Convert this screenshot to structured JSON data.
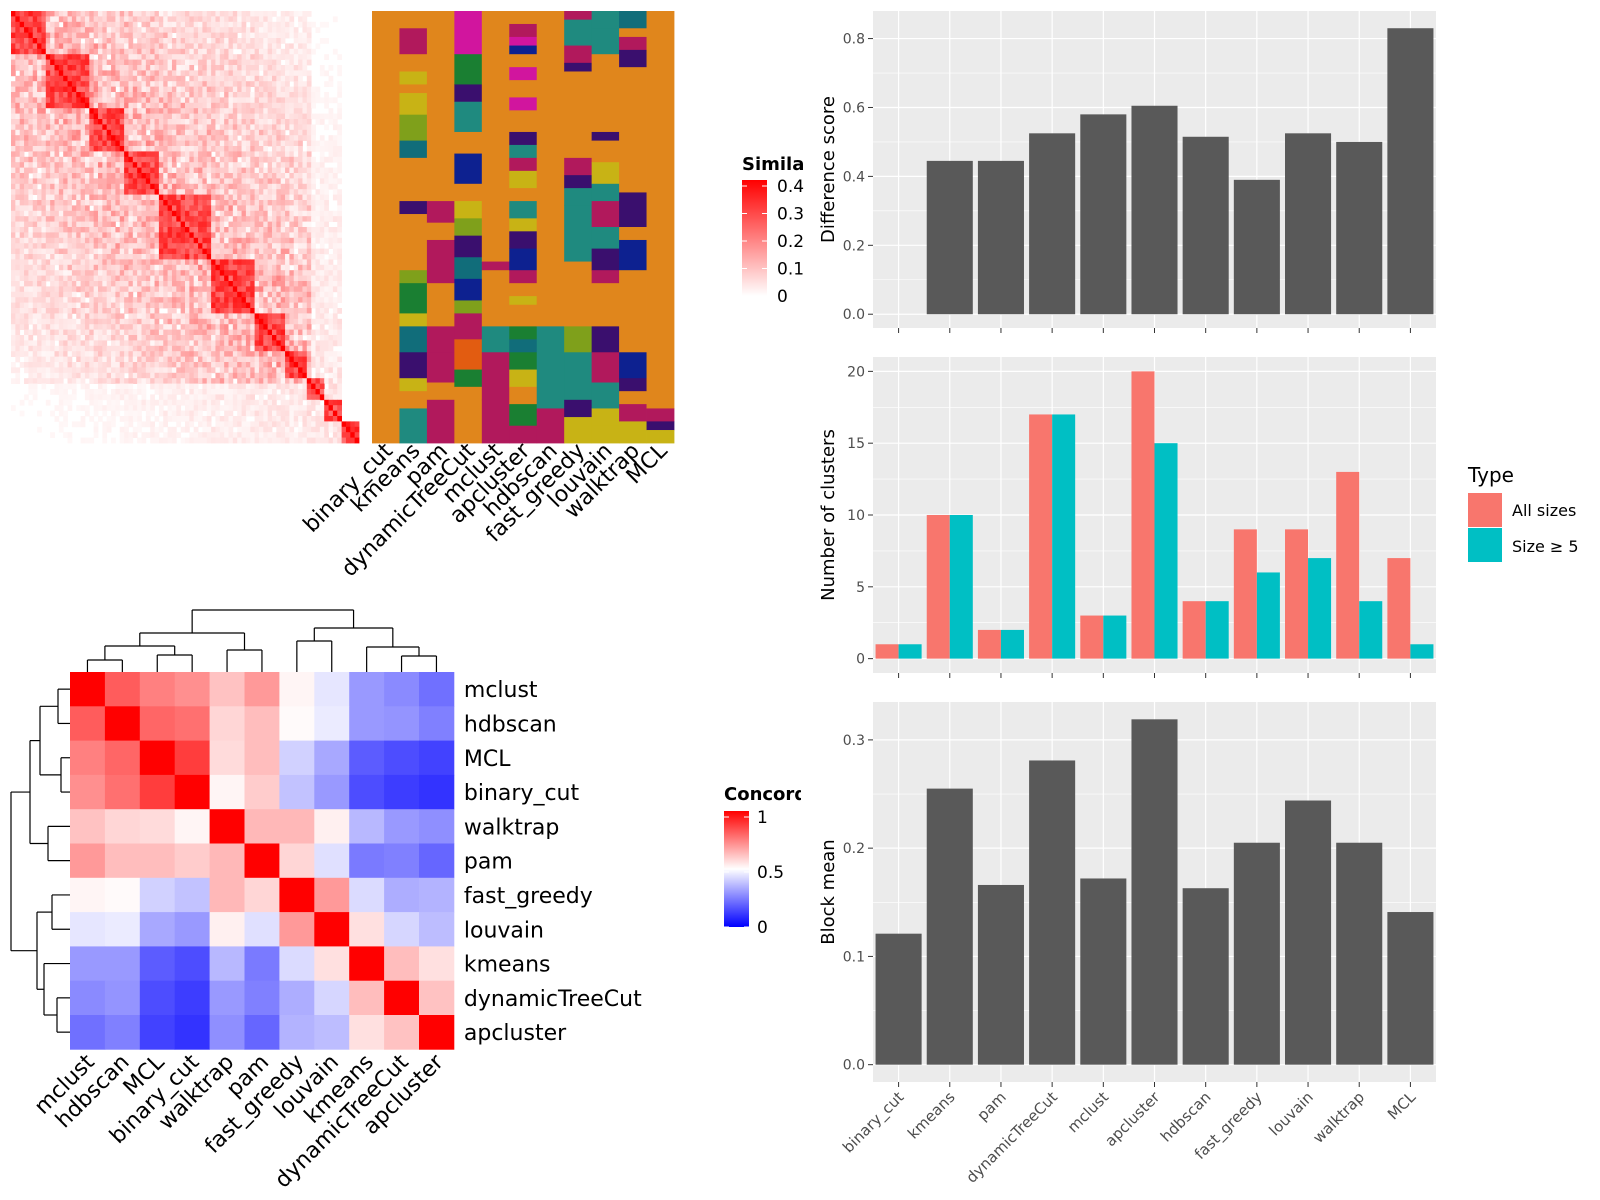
{
  "chart_data": [
    {
      "type": "heatmap",
      "panel": "similarity",
      "legend_title": "Similarity",
      "legend_ticks": [
        "0.4",
        "0.3",
        "0.2",
        "0.1",
        "0"
      ],
      "colors": {
        "low": "#ffffff",
        "high": "#ff0000"
      }
    },
    {
      "type": "heatmap",
      "panel": "cluster_assignments",
      "columns": [
        "binary_cut",
        "kmeans",
        "pam",
        "dynamicTreeCut",
        "mclust",
        "apcluster",
        "hdbscan",
        "fast_greedy",
        "louvain",
        "walktrap",
        "MCL"
      ],
      "palette": [
        "#E0861C",
        "#B1195C",
        "#C8B315",
        "#7FA01B",
        "#116D7A",
        "#3A0F6E",
        "#D1159E",
        "#0D2190",
        "#1A7F32",
        "#1F8A7F",
        "#E25C11"
      ]
    },
    {
      "type": "heatmap",
      "panel": "concordance",
      "legend_title": "Concordance",
      "legend_ticks": [
        "1",
        "0.5",
        "0"
      ],
      "rows": [
        "mclust",
        "hdbscan",
        "MCL",
        "binary_cut",
        "walktrap",
        "pam",
        "fast_greedy",
        "louvain",
        "kmeans",
        "dynamicTreeCut",
        "apcluster"
      ],
      "cols": [
        "mclust",
        "hdbscan",
        "MCL",
        "binary_cut",
        "walktrap",
        "pam",
        "fast_greedy",
        "louvain",
        "kmeans",
        "dynamicTreeCut",
        "apcluster"
      ],
      "values": [
        [
          1.0,
          0.82,
          0.75,
          0.72,
          0.62,
          0.7,
          0.52,
          0.45,
          0.3,
          0.27,
          0.22
        ],
        [
          0.82,
          1.0,
          0.8,
          0.78,
          0.58,
          0.63,
          0.51,
          0.46,
          0.3,
          0.29,
          0.25
        ],
        [
          0.75,
          0.8,
          1.0,
          0.88,
          0.57,
          0.63,
          0.41,
          0.33,
          0.18,
          0.15,
          0.13
        ],
        [
          0.72,
          0.78,
          0.88,
          1.0,
          0.52,
          0.6,
          0.38,
          0.3,
          0.15,
          0.12,
          0.1
        ],
        [
          0.62,
          0.58,
          0.57,
          0.52,
          1.0,
          0.64,
          0.64,
          0.53,
          0.36,
          0.3,
          0.28
        ],
        [
          0.7,
          0.63,
          0.63,
          0.6,
          0.64,
          1.0,
          0.58,
          0.44,
          0.24,
          0.25,
          0.2
        ],
        [
          0.52,
          0.51,
          0.41,
          0.38,
          0.64,
          0.58,
          1.0,
          0.7,
          0.43,
          0.34,
          0.35
        ],
        [
          0.45,
          0.46,
          0.33,
          0.3,
          0.53,
          0.44,
          0.7,
          1.0,
          0.56,
          0.42,
          0.37
        ],
        [
          0.3,
          0.3,
          0.18,
          0.15,
          0.36,
          0.24,
          0.43,
          0.56,
          1.0,
          0.63,
          0.56
        ],
        [
          0.27,
          0.29,
          0.15,
          0.12,
          0.3,
          0.25,
          0.34,
          0.42,
          0.63,
          1.0,
          0.62
        ],
        [
          0.22,
          0.25,
          0.13,
          0.1,
          0.28,
          0.2,
          0.35,
          0.37,
          0.56,
          0.62,
          1.0
        ]
      ],
      "colors": {
        "low": "#0000ff",
        "mid": "#ffffff",
        "high": "#ff0000"
      }
    },
    {
      "type": "bar",
      "panel": "difference_score",
      "categories": [
        "binary_cut",
        "kmeans",
        "pam",
        "dynamicTreeCut",
        "mclust",
        "apcluster",
        "hdbscan",
        "fast_greedy",
        "louvain",
        "walktrap",
        "MCL"
      ],
      "values": [
        0,
        0.445,
        0.445,
        0.525,
        0.58,
        0.605,
        0.515,
        0.39,
        0.525,
        0.5,
        0.83
      ],
      "ylabel": "Difference score",
      "ylim": [
        -0.04,
        0.88
      ],
      "yticks": [
        "0.0",
        "0.2",
        "0.4",
        "0.6",
        "0.8"
      ],
      "color": "#595959"
    },
    {
      "type": "bar",
      "panel": "number_of_clusters",
      "categories": [
        "binary_cut",
        "kmeans",
        "pam",
        "dynamicTreeCut",
        "mclust",
        "apcluster",
        "hdbscan",
        "fast_greedy",
        "louvain",
        "walktrap",
        "MCL"
      ],
      "series": [
        {
          "name": "All sizes",
          "values": [
            1,
            10,
            2,
            17,
            3,
            20,
            4,
            9,
            9,
            13,
            7
          ],
          "color": "#F8766D"
        },
        {
          "name": "Size ≥ 5",
          "values": [
            1,
            10,
            2,
            17,
            3,
            15,
            4,
            6,
            7,
            4,
            1
          ],
          "color": "#00BFC4"
        }
      ],
      "ylabel": "Number of clusters",
      "ylim": [
        -1,
        21
      ],
      "yticks": [
        "0",
        "5",
        "10",
        "15",
        "20"
      ],
      "legend_title": "Type",
      "legend_position": "right"
    },
    {
      "type": "bar",
      "panel": "block_mean",
      "categories": [
        "binary_cut",
        "kmeans",
        "pam",
        "dynamicTreeCut",
        "mclust",
        "apcluster",
        "hdbscan",
        "fast_greedy",
        "louvain",
        "walktrap",
        "MCL"
      ],
      "values": [
        0.121,
        0.255,
        0.166,
        0.281,
        0.172,
        0.319,
        0.163,
        0.205,
        0.244,
        0.205,
        0.141
      ],
      "ylabel": "Block mean",
      "ylim": [
        -0.016,
        0.335
      ],
      "yticks": [
        "0.0",
        "0.1",
        "0.2",
        "0.3"
      ],
      "color": "#595959"
    }
  ]
}
